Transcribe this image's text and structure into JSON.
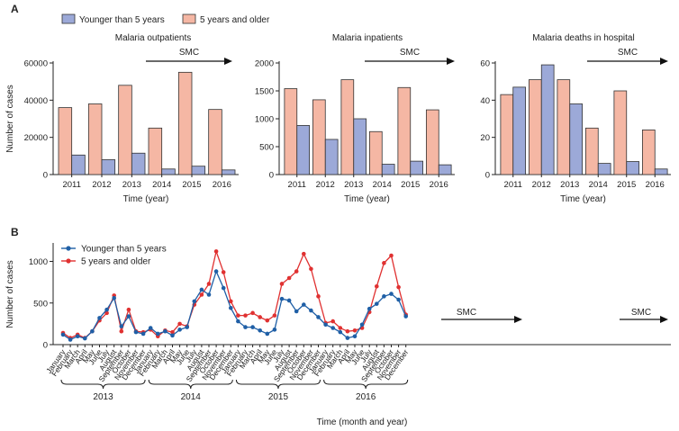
{
  "figure": {
    "panel_a_label": "A",
    "panel_b_label": "B",
    "legend_a": [
      "Younger than 5 years",
      "5 years and older"
    ],
    "legend_b": [
      "Younger than 5 years",
      "5 years and older"
    ],
    "smc_label": "SMC",
    "colors": {
      "young_bar": "#9ca9d8",
      "old_bar": "#f5b7a4",
      "young_line": "#1f5fa6",
      "old_line": "#e03131"
    }
  },
  "chart_data": [
    {
      "type": "bar",
      "title": "Malaria outpatients",
      "categories": [
        "2011",
        "2012",
        "2013",
        "2014",
        "2015",
        "2016"
      ],
      "series": [
        {
          "name": "5 years and older",
          "values": [
            36000,
            38000,
            48000,
            25000,
            55000,
            35000
          ]
        },
        {
          "name": "Younger than 5 years",
          "values": [
            10500,
            8000,
            11500,
            3000,
            4500,
            2500
          ]
        }
      ],
      "xlabel": "Time (year)",
      "ylabel": "Number of cases",
      "ylim": [
        0,
        60000
      ],
      "yticks": [
        "0",
        "20000",
        "40000",
        "60000"
      ],
      "annotation": "SMC"
    },
    {
      "type": "bar",
      "title": "Malaria inpatients",
      "categories": [
        "2011",
        "2012",
        "2013",
        "2014",
        "2015",
        "2016"
      ],
      "series": [
        {
          "name": "5 years and older",
          "values": [
            1540,
            1340,
            1700,
            770,
            1560,
            1160
          ]
        },
        {
          "name": "Younger than 5 years",
          "values": [
            880,
            630,
            1000,
            185,
            240,
            175
          ]
        }
      ],
      "xlabel": "Time (year)",
      "ylabel": "",
      "ylim": [
        0,
        2000
      ],
      "yticks": [
        "0",
        "500",
        "1000",
        "1500",
        "2000"
      ],
      "annotation": "SMC"
    },
    {
      "type": "bar",
      "title": "Malaria deaths in hospital",
      "categories": [
        "2011",
        "2012",
        "2013",
        "2014",
        "2015",
        "2016"
      ],
      "series": [
        {
          "name": "5 years and older",
          "values": [
            43,
            51,
            51,
            25,
            45,
            24
          ]
        },
        {
          "name": "Younger than 5 years",
          "values": [
            47,
            59,
            38,
            6,
            7,
            3
          ]
        }
      ],
      "xlabel": "Time (year)",
      "ylabel": "",
      "ylim": [
        0,
        60
      ],
      "yticks": [
        "0",
        "20",
        "40",
        "60"
      ],
      "annotation": "SMC"
    },
    {
      "type": "line",
      "xlabel": "Time (month and year)",
      "ylabel": "Number of cases",
      "ylim": [
        0,
        1200
      ],
      "yticks": [
        "0",
        "500",
        "1000"
      ],
      "months": [
        "January",
        "February",
        "March",
        "April",
        "May",
        "June",
        "July",
        "August",
        "September",
        "October",
        "November",
        "December"
      ],
      "years": [
        "2013",
        "2014",
        "2015",
        "2016"
      ],
      "series": [
        {
          "name": "Younger than 5 years",
          "values": [
            120,
            60,
            100,
            75,
            160,
            320,
            420,
            560,
            220,
            340,
            150,
            130,
            200,
            130,
            160,
            110,
            180,
            210,
            520,
            660,
            600,
            880,
            680,
            440,
            280,
            210,
            210,
            170,
            130,
            180,
            550,
            530,
            400,
            480,
            410,
            330,
            240,
            200,
            150,
            80,
            100,
            240,
            430,
            490,
            580,
            610,
            540,
            340
          ]
        },
        {
          "name": "5 years and older",
          "values": [
            140,
            80,
            120,
            80,
            160,
            290,
            380,
            590,
            160,
            420,
            160,
            150,
            180,
            100,
            170,
            150,
            250,
            220,
            480,
            600,
            730,
            1120,
            870,
            520,
            350,
            350,
            380,
            330,
            290,
            350,
            730,
            800,
            880,
            1090,
            910,
            580,
            260,
            280,
            200,
            160,
            170,
            200,
            390,
            700,
            980,
            1070,
            690,
            360
          ]
        }
      ],
      "annotations": [
        "SMC",
        "SMC"
      ]
    }
  ]
}
